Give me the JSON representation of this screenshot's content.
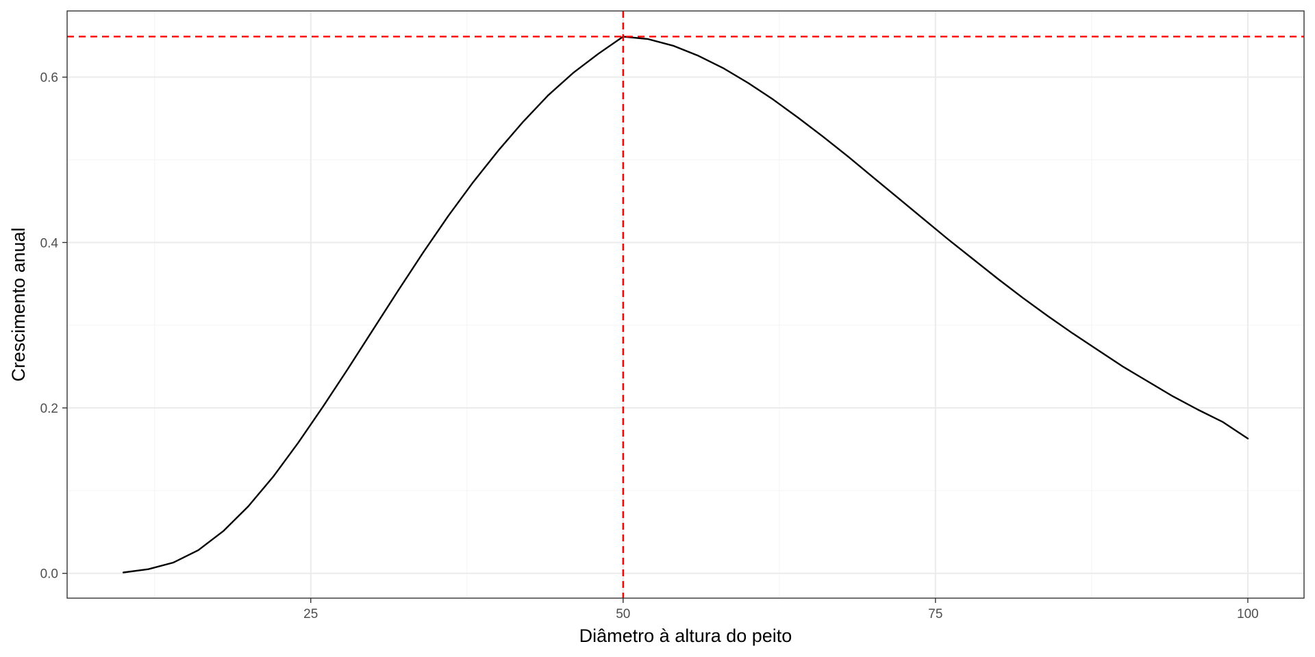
{
  "chart_data": {
    "type": "line",
    "title": "",
    "xlabel": "Diâmetro à altura do peito",
    "ylabel": "Crescimento anual",
    "xlim": [
      5.5,
      104.5
    ],
    "ylim": [
      -0.03,
      0.68
    ],
    "x_ticks": [
      25,
      50,
      75,
      100
    ],
    "x_tick_labels": [
      "25",
      "50",
      "75",
      "100"
    ],
    "y_ticks": [
      0.0,
      0.2,
      0.4,
      0.6
    ],
    "y_tick_labels": [
      "0.0",
      "0.2",
      "0.4",
      "0.6"
    ],
    "grid": true,
    "legend": "none",
    "series": [
      {
        "color": "#000000",
        "x": [
          10,
          12,
          14,
          16,
          18,
          20,
          22,
          24,
          26,
          28,
          30,
          32,
          34,
          36,
          38,
          40,
          42,
          44,
          46,
          48,
          50,
          52,
          54,
          56,
          58,
          60,
          62,
          64,
          66,
          68,
          70,
          72,
          74,
          76,
          78,
          80,
          82,
          84,
          86,
          88,
          90,
          92,
          94,
          96,
          98,
          100
        ],
        "y": [
          0.001,
          0.005,
          0.013,
          0.028,
          0.051,
          0.081,
          0.117,
          0.158,
          0.202,
          0.248,
          0.295,
          0.342,
          0.388,
          0.432,
          0.473,
          0.511,
          0.546,
          0.578,
          0.605,
          0.628,
          0.649,
          0.646,
          0.638,
          0.626,
          0.611,
          0.593,
          0.573,
          0.551,
          0.528,
          0.504,
          0.479,
          0.454,
          0.429,
          0.404,
          0.38,
          0.356,
          0.333,
          0.311,
          0.29,
          0.27,
          0.25,
          0.232,
          0.214,
          0.198,
          0.183,
          0.163
        ]
      }
    ],
    "reference_lines": [
      {
        "orientation": "vertical",
        "value": 50,
        "style": "dashed",
        "color": "#ff0000"
      },
      {
        "orientation": "horizontal",
        "value": 0.649,
        "style": "dashed",
        "color": "#ff0000"
      }
    ],
    "colors": {
      "background": "#ffffff",
      "grid_major": "#ebebeb",
      "grid_minor": "#f5f5f5",
      "panel_border": "#333333"
    }
  }
}
